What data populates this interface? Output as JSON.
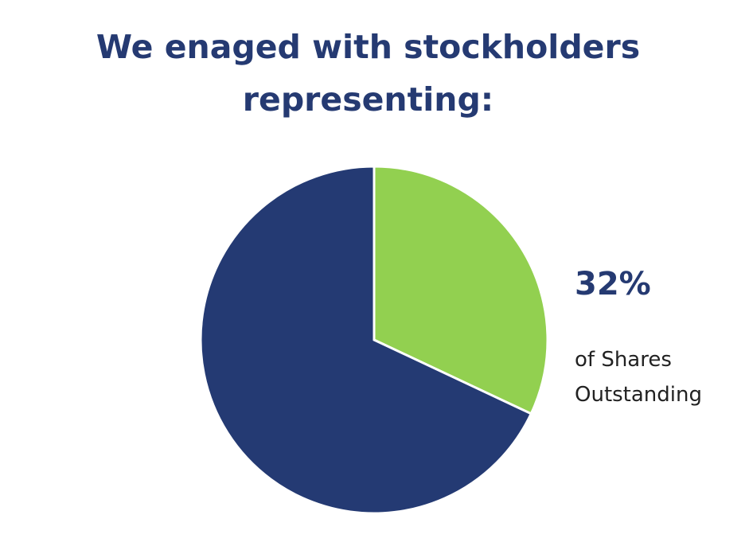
{
  "chart_data": {
    "type": "pie",
    "title": "We enaged with stockholders representing:",
    "values": [
      32,
      68
    ],
    "value_labels": [
      "32%",
      null
    ],
    "colors": [
      "#92d050",
      "#243a73"
    ],
    "annotation": "of Shares Outstanding"
  }
}
